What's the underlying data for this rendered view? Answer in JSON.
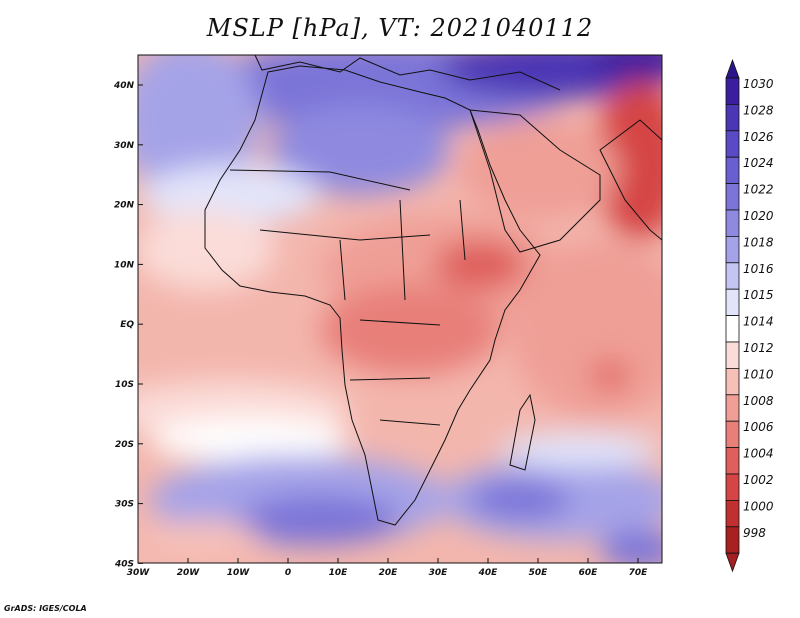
{
  "title": "MSLP [hPa], VT: 2021040112",
  "credit": "GrADS: IGES/COLA",
  "x_tick_labels": [
    "30W",
    "20W",
    "10W",
    "0",
    "10E",
    "20E",
    "30E",
    "40E",
    "50E",
    "60E",
    "70E"
  ],
  "y_tick_labels": [
    "40N",
    "30N",
    "20N",
    "10N",
    "EQ",
    "10S",
    "20S",
    "30S",
    "40S"
  ],
  "colorbar": {
    "levels": [
      "1030",
      "1028",
      "1026",
      "1024",
      "1022",
      "1020",
      "1018",
      "1016",
      "1015",
      "1014",
      "1012",
      "1010",
      "1008",
      "1006",
      "1004",
      "1002",
      "1000",
      "998"
    ],
    "colors": [
      "#3a1e9e",
      "#4b36b4",
      "#5a4ac6",
      "#6a5fd0",
      "#7c74d8",
      "#8f8ae0",
      "#a5a3e8",
      "#c4c5f2",
      "#e2e4fa",
      "#ffffff",
      "#fbdcd8",
      "#f6c0b8",
      "#ef9f96",
      "#e87f79",
      "#df5f5c",
      "#d54545",
      "#c03030",
      "#a82020"
    ],
    "top_arrow_color": "#2a168a",
    "bottom_arrow_color": "#a51f22"
  },
  "map": {
    "lon_range": [
      -30,
      75
    ],
    "lat_range": [
      -40,
      45
    ]
  }
}
